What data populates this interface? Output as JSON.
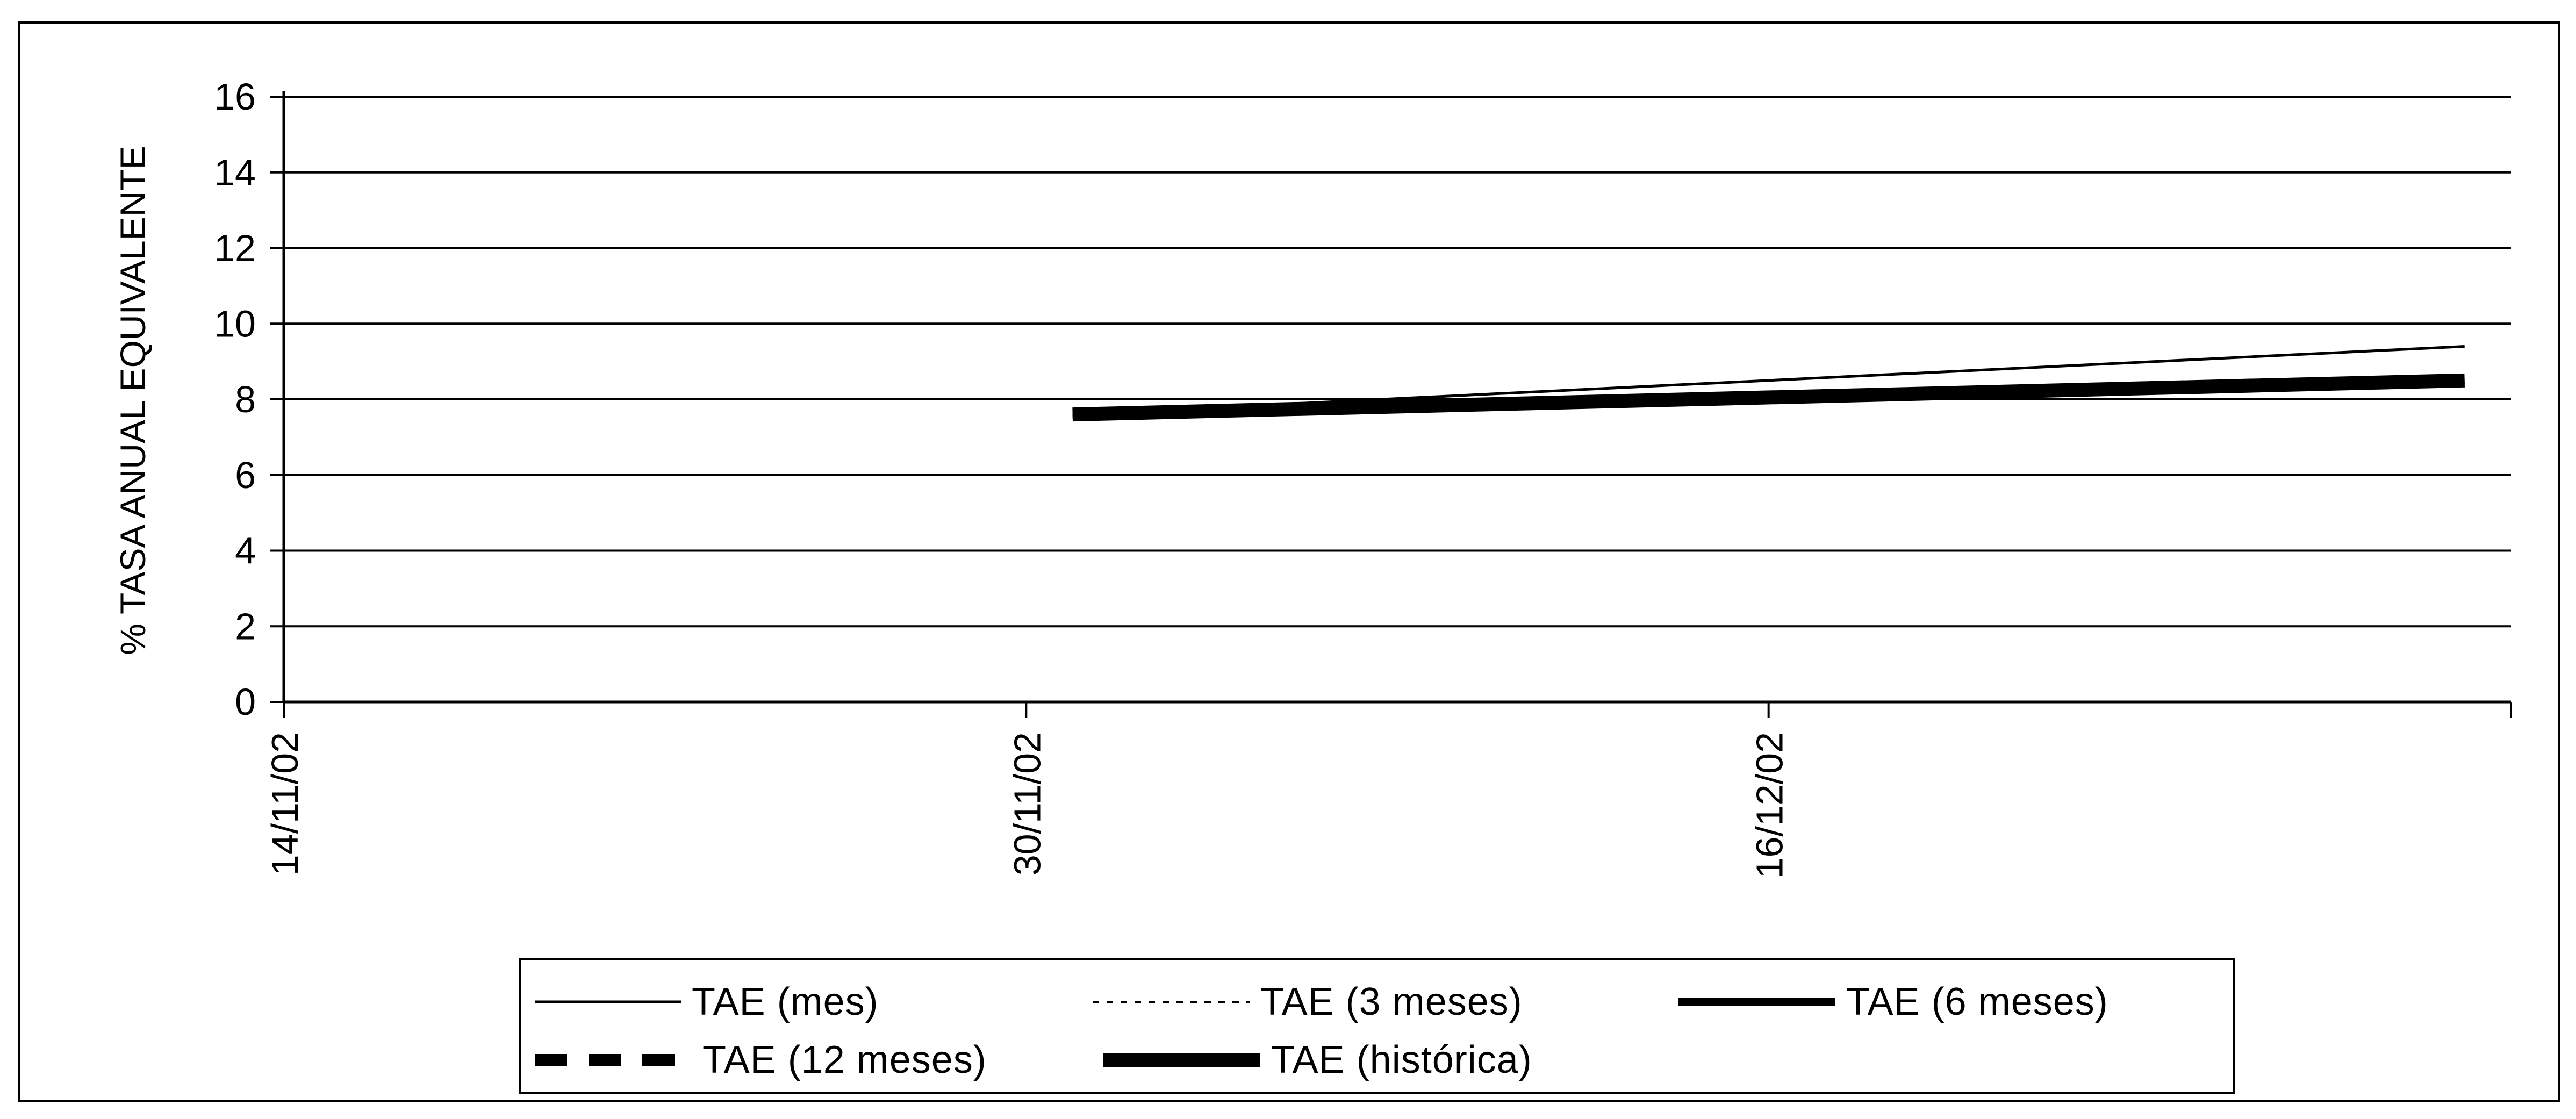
{
  "chart_data": {
    "type": "line",
    "title": "",
    "xlabel": "",
    "ylabel": "% TASA ANUAL EQUIVALENTE",
    "ylim": [
      0,
      16
    ],
    "yticks": [
      0,
      2,
      4,
      6,
      8,
      10,
      12,
      14,
      16
    ],
    "xlim": [
      "14/11/02",
      "01/01/03"
    ],
    "xticks": [
      "14/11/02",
      "30/11/02",
      "16/12/02"
    ],
    "grid": true,
    "legend_position": "bottom",
    "series": [
      {
        "name": "TAE (mes)",
        "style": "thin-solid",
        "x": [
          "01/12/02",
          "31/12/02"
        ],
        "y": [
          7.6,
          9.4
        ]
      },
      {
        "name": "TAE (3 meses)",
        "style": "dotted",
        "x": [
          "01/12/02",
          "31/12/02"
        ],
        "y": [
          7.6,
          8.5
        ]
      },
      {
        "name": "TAE (6 meses)",
        "style": "thick-solid",
        "x": [
          "01/12/02",
          "31/12/02"
        ],
        "y": [
          7.6,
          8.5
        ]
      },
      {
        "name": "TAE (12 meses)",
        "style": "thick-dashed",
        "x": [
          "01/12/02",
          "31/12/02"
        ],
        "y": [
          7.6,
          8.5
        ]
      },
      {
        "name": "TAE (histórica)",
        "style": "very-thick-solid",
        "x": [
          "01/12/02",
          "31/12/02"
        ],
        "y": [
          7.6,
          8.5
        ]
      }
    ]
  }
}
